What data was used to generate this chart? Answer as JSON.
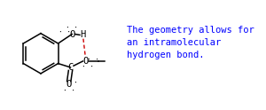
{
  "bg_color": "#ffffff",
  "text_color": "#0000ff",
  "bond_color": "#000000",
  "hbond_color": "#cc0000",
  "text_lines": [
    "The geometry allows for",
    "an intramolecular",
    "hydrogen bond."
  ],
  "text_fontsize": 7.5,
  "text_family": "monospace",
  "figsize": [
    3.0,
    1.24
  ],
  "dpi": 100
}
